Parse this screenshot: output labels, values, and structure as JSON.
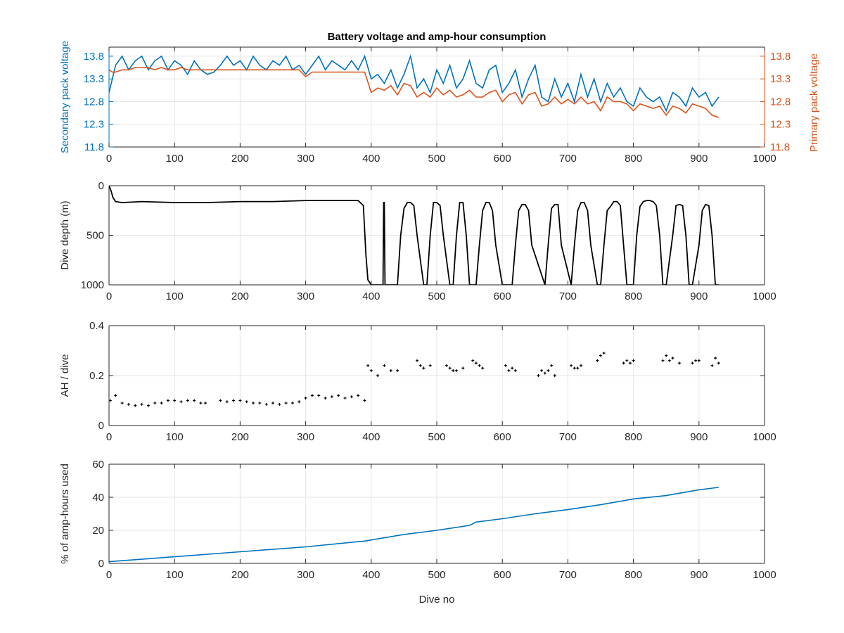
{
  "figure": {
    "title": "Battery voltage and amp-hour consumption"
  },
  "colors": {
    "secondary": "#0072BD",
    "primary": "#D95319",
    "black": "#000000",
    "grid": "#e6e6e6"
  },
  "chart_data": [
    {
      "type": "line",
      "title": "Battery voltage and amp-hour consumption",
      "xlabel": "",
      "ylabel": "Secondary pack voltage",
      "y2label": "Primary pack voltage",
      "xlim": [
        0,
        1000
      ],
      "ylim": [
        11.8,
        14.0
      ],
      "y2lim": [
        11.8,
        14.0
      ],
      "xticks": [
        0,
        100,
        200,
        300,
        400,
        500,
        600,
        700,
        800,
        900,
        1000
      ],
      "yticks": [
        11.8,
        12.3,
        12.8,
        13.3,
        13.8
      ],
      "ytick_labels": [
        "11.8",
        "12.3",
        "12.8",
        "13.3",
        "13.8"
      ],
      "grid": true,
      "series": [
        {
          "name": "Secondary pack voltage",
          "axis": "left",
          "x": [
            0,
            5,
            10,
            20,
            30,
            40,
            50,
            60,
            70,
            80,
            90,
            100,
            110,
            120,
            130,
            140,
            150,
            160,
            170,
            180,
            190,
            200,
            210,
            220,
            230,
            240,
            250,
            260,
            270,
            280,
            290,
            300,
            310,
            320,
            330,
            340,
            350,
            360,
            370,
            380,
            390,
            400,
            410,
            420,
            430,
            440,
            450,
            460,
            470,
            480,
            490,
            500,
            510,
            520,
            530,
            540,
            550,
            560,
            570,
            580,
            590,
            600,
            610,
            620,
            630,
            640,
            650,
            660,
            670,
            680,
            690,
            700,
            710,
            720,
            730,
            740,
            750,
            760,
            770,
            780,
            790,
            800,
            810,
            820,
            830,
            840,
            850,
            860,
            870,
            880,
            890,
            900,
            910,
            920,
            930
          ],
          "values": [
            13.0,
            13.3,
            13.6,
            13.8,
            13.5,
            13.7,
            13.8,
            13.5,
            13.7,
            13.8,
            13.5,
            13.7,
            13.6,
            13.4,
            13.7,
            13.5,
            13.4,
            13.45,
            13.6,
            13.8,
            13.6,
            13.7,
            13.5,
            13.8,
            13.6,
            13.5,
            13.7,
            13.6,
            13.8,
            13.5,
            13.6,
            13.4,
            13.6,
            13.8,
            13.5,
            13.7,
            13.6,
            13.5,
            13.7,
            13.5,
            13.8,
            13.3,
            13.4,
            13.2,
            13.5,
            13.1,
            13.4,
            13.8,
            13.1,
            13.3,
            13.0,
            13.5,
            13.2,
            13.6,
            13.1,
            13.3,
            13.7,
            13.2,
            13.1,
            13.5,
            13.6,
            13.0,
            13.2,
            13.5,
            12.9,
            13.3,
            13.6,
            12.9,
            12.8,
            13.3,
            12.9,
            13.2,
            12.8,
            13.4,
            12.9,
            13.3,
            12.8,
            13.2,
            12.9,
            13.1,
            12.8,
            12.7,
            13.1,
            12.9,
            12.8,
            12.9,
            12.6,
            13.0,
            12.9,
            12.7,
            13.1,
            12.9,
            13.0,
            12.7,
            12.9
          ]
        },
        {
          "name": "Primary pack voltage",
          "axis": "right",
          "x": [
            0,
            5,
            10,
            20,
            30,
            40,
            50,
            60,
            70,
            80,
            90,
            100,
            110,
            120,
            130,
            140,
            150,
            160,
            170,
            180,
            190,
            200,
            210,
            220,
            230,
            240,
            250,
            260,
            270,
            280,
            290,
            300,
            310,
            320,
            330,
            340,
            350,
            360,
            370,
            380,
            390,
            400,
            410,
            420,
            430,
            440,
            450,
            460,
            470,
            480,
            490,
            500,
            510,
            520,
            530,
            540,
            550,
            560,
            570,
            580,
            590,
            600,
            610,
            620,
            630,
            640,
            650,
            660,
            670,
            680,
            690,
            700,
            710,
            720,
            730,
            740,
            750,
            760,
            770,
            780,
            790,
            800,
            810,
            820,
            830,
            840,
            850,
            860,
            870,
            880,
            890,
            900,
            910,
            920,
            930
          ],
          "values": [
            13.5,
            13.45,
            13.45,
            13.5,
            13.5,
            13.55,
            13.55,
            13.55,
            13.5,
            13.55,
            13.5,
            13.5,
            13.55,
            13.5,
            13.5,
            13.5,
            13.5,
            13.5,
            13.5,
            13.5,
            13.5,
            13.5,
            13.5,
            13.5,
            13.5,
            13.5,
            13.5,
            13.5,
            13.5,
            13.5,
            13.5,
            13.35,
            13.45,
            13.45,
            13.45,
            13.45,
            13.45,
            13.45,
            13.45,
            13.45,
            13.45,
            13.0,
            13.1,
            13.05,
            13.15,
            12.95,
            13.2,
            13.15,
            12.9,
            13.0,
            12.9,
            13.1,
            12.95,
            13.05,
            12.9,
            12.95,
            13.05,
            12.9,
            12.9,
            13.0,
            13.05,
            12.8,
            12.95,
            13.0,
            12.75,
            12.95,
            13.0,
            12.7,
            12.75,
            12.9,
            12.75,
            12.85,
            12.75,
            12.9,
            12.75,
            12.8,
            12.6,
            12.9,
            12.8,
            12.8,
            12.75,
            12.6,
            12.75,
            12.7,
            12.65,
            12.7,
            12.5,
            12.7,
            12.65,
            12.55,
            12.75,
            12.7,
            12.65,
            12.5,
            12.45
          ]
        }
      ]
    },
    {
      "type": "line",
      "title": "",
      "xlabel": "",
      "ylabel": "Dive depth (m)",
      "xlim": [
        0,
        1000
      ],
      "ylim": [
        0,
        1000
      ],
      "y_reversed": true,
      "xticks": [
        0,
        100,
        200,
        300,
        400,
        500,
        600,
        700,
        800,
        900,
        1000
      ],
      "yticks": [
        0,
        500,
        1000
      ],
      "ytick_labels": [
        "0",
        "500",
        "1000"
      ],
      "grid": true,
      "series": [
        {
          "x": [
            0,
            3,
            6,
            10,
            20,
            50,
            100,
            150,
            200,
            250,
            300,
            350,
            380,
            388,
            392,
            395,
            400,
            405,
            418,
            419,
            420,
            421,
            422,
            440,
            445,
            450,
            455,
            460,
            465,
            470,
            480,
            485,
            490,
            495,
            500,
            505,
            510,
            520,
            525,
            530,
            535,
            540,
            545,
            550,
            560,
            565,
            570,
            575,
            580,
            585,
            590,
            600,
            615,
            620,
            625,
            630,
            635,
            640,
            645,
            665,
            670,
            675,
            680,
            685,
            690,
            705,
            710,
            715,
            720,
            725,
            730,
            735,
            745,
            750,
            755,
            760,
            765,
            770,
            775,
            780,
            785,
            790,
            800,
            805,
            810,
            815,
            820,
            825,
            830,
            835,
            840,
            845,
            850,
            860,
            865,
            870,
            875,
            880,
            885,
            890,
            900,
            905,
            910,
            915,
            920,
            925,
            930
          ],
          "values": [
            0,
            50,
            120,
            160,
            170,
            160,
            170,
            170,
            160,
            160,
            150,
            150,
            150,
            200,
            700,
            950,
            1000,
            1000,
            1000,
            170,
            170,
            1000,
            1000,
            1000,
            500,
            230,
            170,
            170,
            200,
            500,
            1000,
            1000,
            500,
            170,
            170,
            200,
            500,
            1000,
            1000,
            500,
            170,
            170,
            500,
            1000,
            1000,
            600,
            250,
            170,
            170,
            250,
            600,
            1000,
            1000,
            600,
            250,
            190,
            190,
            250,
            600,
            1000,
            600,
            230,
            190,
            190,
            600,
            1000,
            600,
            250,
            170,
            170,
            250,
            600,
            1000,
            1000,
            600,
            250,
            210,
            160,
            160,
            200,
            600,
            1000,
            1000,
            500,
            210,
            160,
            150,
            150,
            160,
            200,
            500,
            1000,
            1000,
            500,
            200,
            190,
            200,
            500,
            1000,
            1000,
            600,
            250,
            190,
            200,
            500,
            1000,
            1000
          ]
        }
      ]
    },
    {
      "type": "scatter",
      "title": "",
      "xlabel": "",
      "ylabel": "AH / dive",
      "xlim": [
        0,
        1000
      ],
      "ylim": [
        0,
        0.4
      ],
      "xticks": [
        0,
        100,
        200,
        300,
        400,
        500,
        600,
        700,
        800,
        900,
        1000
      ],
      "yticks": [
        0,
        0.2,
        0.4
      ],
      "ytick_labels": [
        "0",
        "0.2",
        "0.4"
      ],
      "grid": true,
      "series": [
        {
          "x": [
            2,
            10,
            20,
            30,
            40,
            50,
            60,
            70,
            80,
            90,
            100,
            110,
            120,
            130,
            140,
            147,
            170,
            180,
            190,
            200,
            210,
            220,
            230,
            240,
            250,
            260,
            270,
            280,
            290,
            300,
            310,
            320,
            330,
            340,
            350,
            360,
            370,
            380,
            390,
            395,
            400,
            410,
            420,
            430,
            440,
            470,
            475,
            480,
            490,
            515,
            520,
            525,
            530,
            540,
            555,
            560,
            565,
            570,
            605,
            610,
            615,
            620,
            655,
            660,
            665,
            670,
            675,
            680,
            705,
            710,
            715,
            720,
            745,
            750,
            755,
            785,
            790,
            795,
            800,
            845,
            850,
            855,
            860,
            870,
            890,
            895,
            900,
            920,
            925,
            930
          ],
          "values": [
            0.1,
            0.12,
            0.09,
            0.085,
            0.08,
            0.085,
            0.08,
            0.09,
            0.09,
            0.1,
            0.1,
            0.095,
            0.1,
            0.1,
            0.09,
            0.09,
            0.1,
            0.095,
            0.1,
            0.1,
            0.095,
            0.09,
            0.09,
            0.085,
            0.09,
            0.085,
            0.09,
            0.09,
            0.095,
            0.11,
            0.12,
            0.12,
            0.11,
            0.115,
            0.12,
            0.11,
            0.115,
            0.12,
            0.1,
            0.24,
            0.22,
            0.2,
            0.24,
            0.22,
            0.22,
            0.26,
            0.24,
            0.23,
            0.24,
            0.24,
            0.23,
            0.22,
            0.22,
            0.23,
            0.26,
            0.25,
            0.24,
            0.23,
            0.24,
            0.22,
            0.23,
            0.22,
            0.2,
            0.22,
            0.21,
            0.22,
            0.24,
            0.2,
            0.24,
            0.23,
            0.23,
            0.24,
            0.26,
            0.28,
            0.29,
            0.25,
            0.26,
            0.25,
            0.26,
            0.26,
            0.28,
            0.26,
            0.27,
            0.25,
            0.25,
            0.26,
            0.26,
            0.24,
            0.27,
            0.25
          ]
        }
      ]
    },
    {
      "type": "line",
      "title": "",
      "xlabel": "Dive no",
      "ylabel": "% of amp-hours used",
      "xlim": [
        0,
        1000
      ],
      "ylim": [
        0,
        60
      ],
      "xticks": [
        0,
        100,
        200,
        300,
        400,
        500,
        600,
        700,
        800,
        900,
        1000
      ],
      "yticks": [
        0,
        20,
        40,
        60
      ],
      "ytick_labels": [
        "0",
        "20",
        "40",
        "60"
      ],
      "grid": true,
      "series": [
        {
          "x": [
            0,
            100,
            200,
            300,
            390,
            450,
            500,
            550,
            560,
            600,
            650,
            700,
            750,
            800,
            850,
            900,
            930
          ],
          "values": [
            1,
            4,
            7,
            10,
            13.5,
            17.5,
            20,
            23,
            25,
            27,
            30,
            32.5,
            35.5,
            39,
            41,
            44.5,
            46
          ]
        }
      ]
    }
  ]
}
